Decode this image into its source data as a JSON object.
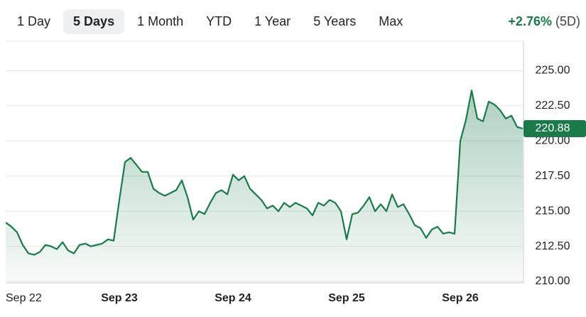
{
  "tabs": [
    "1 Day",
    "5 Days",
    "1 Month",
    "YTD",
    "1 Year",
    "5 Years",
    "Max"
  ],
  "selected_tab": 1,
  "change": {
    "percent": "+2.76%",
    "period": "(5D)"
  },
  "chart_data": {
    "type": "line",
    "color": "#1a7a4a",
    "categories": [
      "Sep 22",
      null,
      null,
      null,
      null,
      null,
      null,
      null,
      null,
      null,
      null,
      null,
      null,
      null,
      null,
      null,
      null,
      null,
      null,
      null,
      "Sep 23",
      null,
      null,
      null,
      null,
      null,
      null,
      null,
      null,
      null,
      null,
      null,
      null,
      null,
      null,
      null,
      null,
      null,
      null,
      null,
      "Sep 24",
      null,
      null,
      null,
      null,
      null,
      null,
      null,
      null,
      null,
      null,
      null,
      null,
      null,
      null,
      null,
      null,
      null,
      null,
      null,
      "Sep 25",
      null,
      null,
      null,
      null,
      null,
      null,
      null,
      null,
      null,
      null,
      null,
      null,
      null,
      null,
      null,
      null,
      null,
      null,
      null,
      "Sep 26",
      null,
      null,
      null,
      null,
      null,
      null,
      null,
      null,
      null,
      null,
      null
    ],
    "values": [
      214.2,
      213.9,
      213.5,
      212.6,
      212.0,
      211.9,
      212.1,
      212.6,
      212.5,
      212.3,
      212.8,
      212.2,
      212.0,
      212.6,
      212.7,
      212.5,
      212.6,
      212.7,
      213.0,
      212.9,
      215.8,
      218.5,
      218.8,
      218.3,
      217.8,
      217.8,
      216.6,
      216.3,
      216.1,
      216.3,
      216.5,
      217.2,
      216.0,
      214.4,
      215.0,
      214.8,
      215.6,
      216.3,
      216.5,
      216.2,
      217.6,
      217.2,
      217.5,
      216.6,
      216.2,
      215.8,
      215.2,
      215.4,
      215.0,
      215.6,
      215.3,
      215.6,
      215.4,
      215.2,
      214.7,
      215.6,
      215.4,
      215.8,
      215.6,
      215.0,
      213.0,
      214.8,
      214.9,
      215.4,
      216.0,
      215.0,
      215.5,
      215.0,
      216.2,
      215.3,
      215.5,
      214.8,
      214.0,
      213.8,
      213.1,
      213.7,
      213.9,
      213.4,
      213.5,
      213.4,
      220.0,
      221.5,
      223.6,
      221.6,
      221.4,
      222.8,
      222.6,
      222.2,
      221.6,
      221.8,
      221.0,
      220.88
    ],
    "ylim": [
      209.9,
      227.1
    ],
    "yticks": [
      {
        "value": 210,
        "label": "210.00"
      },
      {
        "value": 212.5,
        "label": "212.50"
      },
      {
        "value": 215,
        "label": "215.00"
      },
      {
        "value": 217.5,
        "label": "217.50"
      },
      {
        "value": 220,
        "label": "220.00"
      },
      {
        "value": 222.5,
        "label": "222.50"
      },
      {
        "value": 225,
        "label": "225.00"
      }
    ],
    "grid": true
  }
}
